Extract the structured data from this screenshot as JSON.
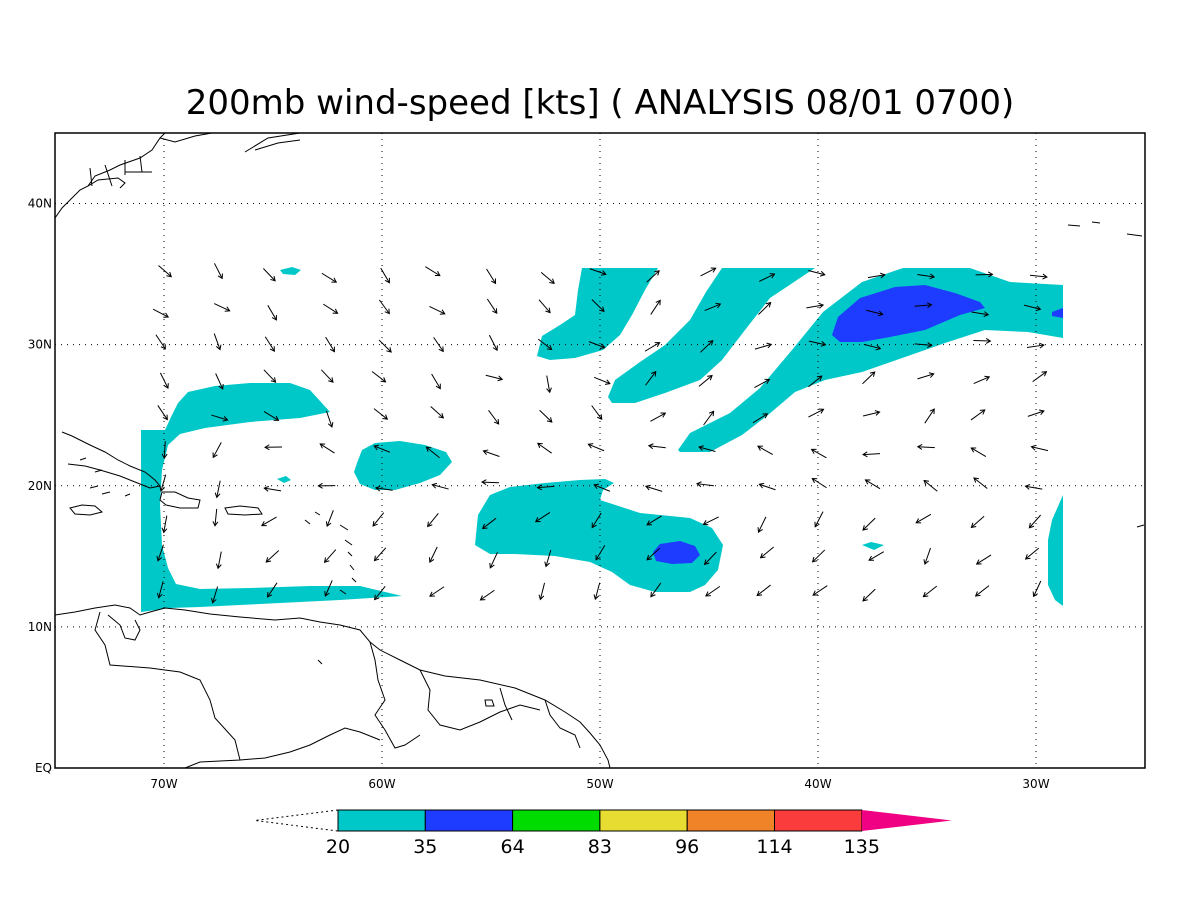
{
  "title": "200mb wind-speed [kts] ( ANALYSIS 08/01 0700)",
  "map": {
    "lon_range": [
      -75,
      -25
    ],
    "lat_range": [
      0,
      45
    ],
    "x_ticks": [
      {
        "lon": -70,
        "label": "70W"
      },
      {
        "lon": -60,
        "label": "60W"
      },
      {
        "lon": -50,
        "label": "50W"
      },
      {
        "lon": -40,
        "label": "40W"
      },
      {
        "lon": -30,
        "label": "30W"
      }
    ],
    "y_ticks": [
      {
        "lat": 0,
        "label": "EQ"
      },
      {
        "lat": 10,
        "label": "10N"
      },
      {
        "lat": 20,
        "label": "20N"
      },
      {
        "lat": 30,
        "label": "30N"
      },
      {
        "lat": 40,
        "label": "40N"
      }
    ],
    "grid": "dotted"
  },
  "colorbar": {
    "bins": [
      {
        "color": "#00c8c8"
      },
      {
        "color": "#1e3cff"
      },
      {
        "color": "#00dc00"
      },
      {
        "color": "#e6dc32"
      },
      {
        "color": "#f08228"
      },
      {
        "color": "#fa3c3c"
      }
    ],
    "over_color": "#f00082",
    "levels": [
      "20",
      "35",
      "64",
      "83",
      "96",
      "114",
      "135"
    ]
  },
  "wind_vectors": "arrows every 2.5° across 70W–29W, 12N–35N"
}
